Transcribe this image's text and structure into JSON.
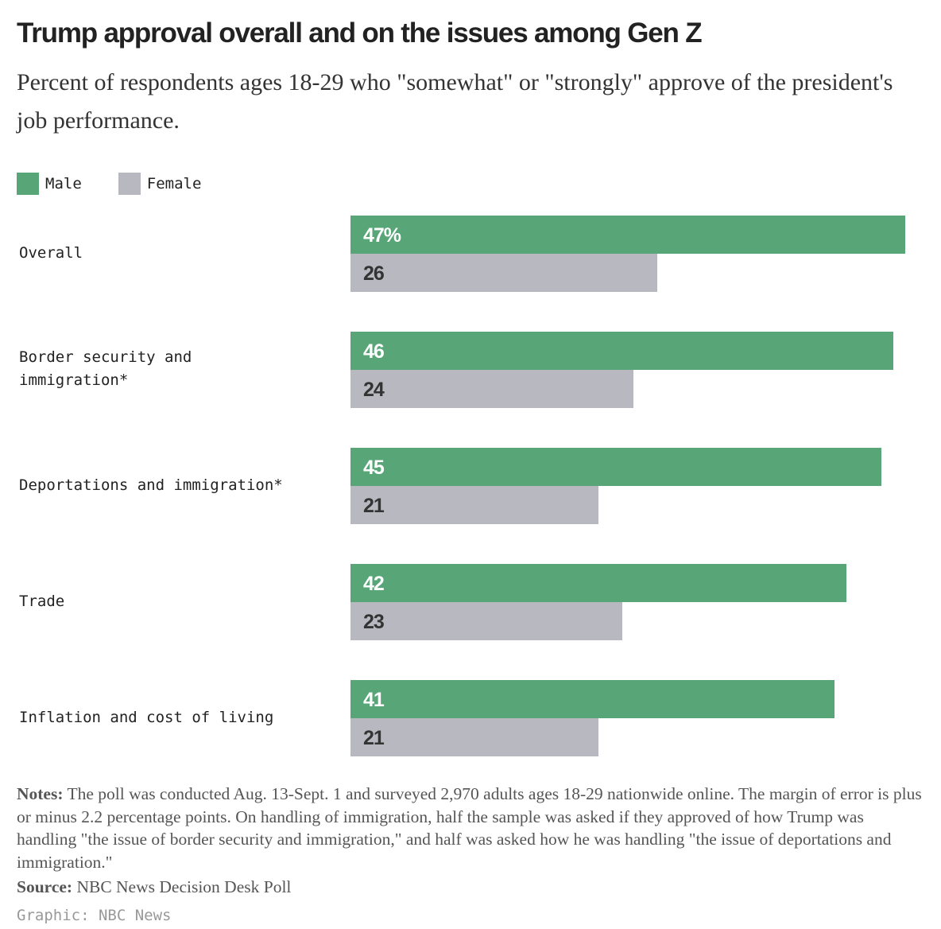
{
  "chart_data": {
    "type": "bar",
    "orientation": "horizontal",
    "title": "Trump approval overall and on the issues among Gen Z",
    "subtitle": "Percent of respondents ages 18-29 who \"somewhat\" or \"strongly\" approve of the president's job performance.",
    "categories": [
      "Overall",
      "Border security and immigration*",
      "Deportations and immigration*",
      "Trade",
      "Inflation and cost of living"
    ],
    "series": [
      {
        "name": "Male",
        "color": "#58a677",
        "values": [
          47,
          46,
          45,
          42,
          41
        ]
      },
      {
        "name": "Female",
        "color": "#b8b8c1",
        "values": [
          26,
          24,
          21,
          23,
          21
        ]
      }
    ],
    "value_labels": [
      [
        "47%",
        "46",
        "45",
        "42",
        "41"
      ],
      [
        "26",
        "24",
        "21",
        "23",
        "21"
      ]
    ],
    "xlim": [
      0,
      47
    ],
    "grid": false,
    "legend": "top-left"
  },
  "notes_label": "Notes:",
  "notes": " The poll was conducted Aug. 13-Sept. 1 and surveyed 2,970 adults ages 18-29 nationwide online. The margin of error is plus or minus 2.2 percentage points. On handling of immigration, half the sample was asked if they approved of how Trump was handling \"the issue of border security and immigration,\" and half was asked how he was handling \"the issue of deportations and immigration.\"",
  "source_label": "Source:",
  "source": " NBC News Decision Desk Poll",
  "credit": "Graphic: NBC News"
}
